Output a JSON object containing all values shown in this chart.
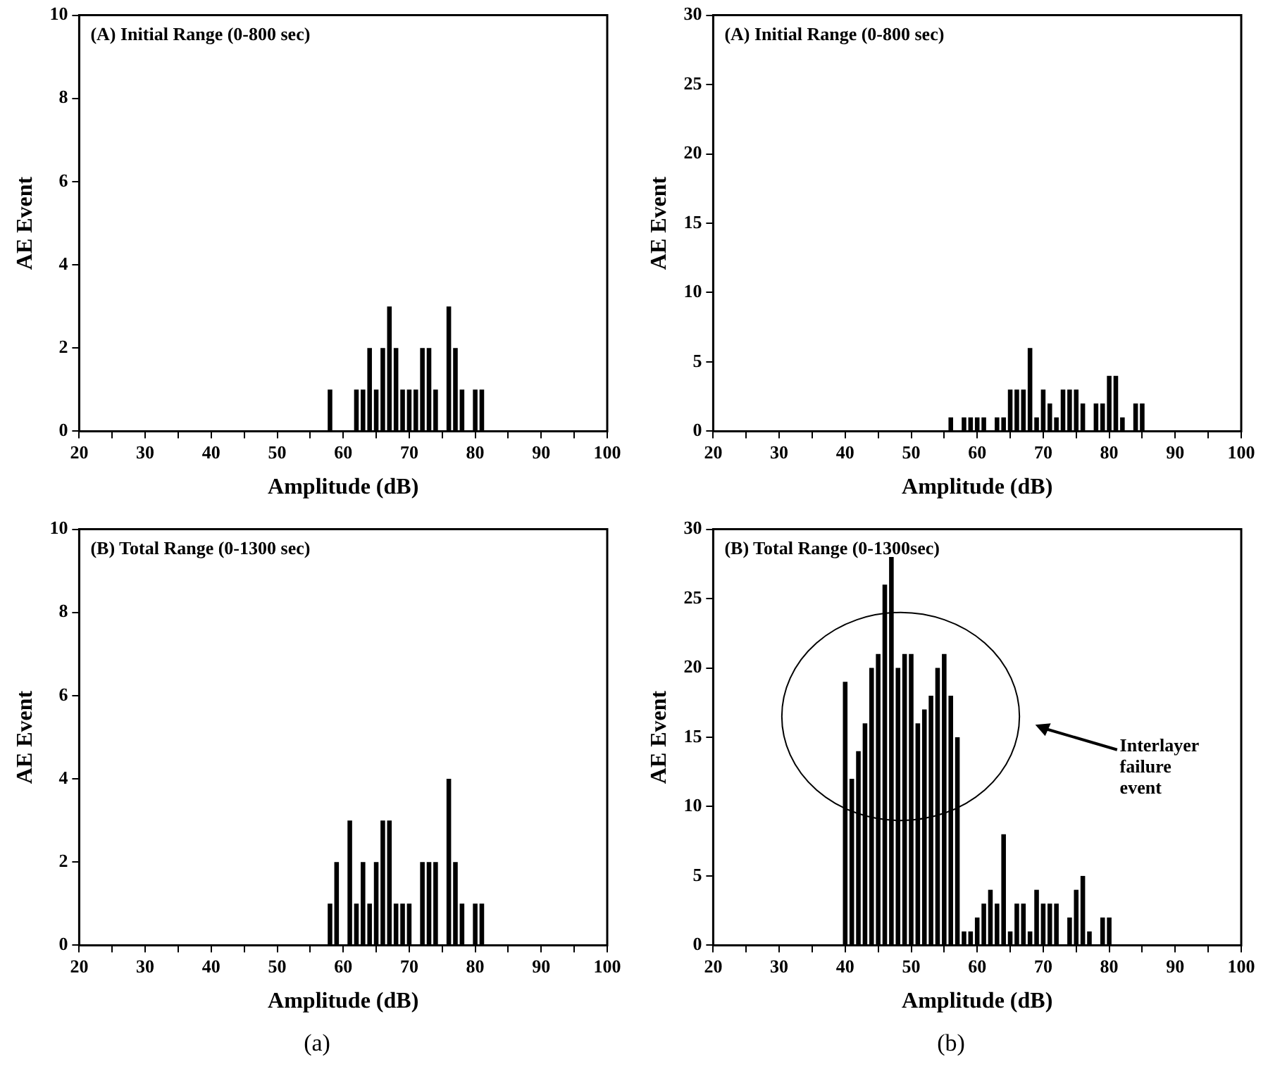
{
  "chart_data": [
    {
      "type": "bar",
      "title": "(A) Initial Range (0-800 sec)",
      "xlabel": "Amplitude (dB)",
      "ylabel": "AE Event",
      "legend": false,
      "grid": false,
      "x": [
        58,
        62,
        63,
        64,
        65,
        66,
        67,
        68,
        69,
        70,
        71,
        72,
        73,
        74,
        76,
        77,
        78,
        80,
        81
      ],
      "series": [
        {
          "color": "#000000",
          "values": [
            1,
            1,
            1,
            2,
            1,
            2,
            3,
            2,
            1,
            1,
            1,
            2,
            2,
            1,
            3,
            2,
            1,
            1,
            1
          ]
        }
      ],
      "xlim": [
        20,
        100
      ],
      "xticks": [
        20,
        {
          "value": 25,
          "label": null
        },
        30,
        {
          "value": 35,
          "label": null
        },
        40,
        {
          "value": 45,
          "label": null
        },
        50,
        {
          "value": 55,
          "label": null
        },
        60,
        {
          "value": 65,
          "label": null
        },
        70,
        {
          "value": 75,
          "label": null
        },
        80,
        {
          "value": 85,
          "label": null
        },
        90,
        {
          "value": 95,
          "label": null
        },
        100
      ],
      "ylim": [
        0,
        10
      ],
      "yticks": [
        0,
        2,
        4,
        6,
        8,
        10
      ]
    },
    {
      "type": "bar",
      "title": "(A) Initial Range (0-800 sec)",
      "xlabel": "Amplitude (dB)",
      "ylabel": "AE Event",
      "legend": false,
      "grid": false,
      "x": [
        56,
        58,
        59,
        60,
        61,
        63,
        64,
        65,
        66,
        67,
        68,
        69,
        70,
        71,
        72,
        73,
        74,
        75,
        76,
        78,
        79,
        80,
        81,
        82,
        84,
        85
      ],
      "series": [
        {
          "color": "#000000",
          "values": [
            1,
            1,
            1,
            1,
            1,
            1,
            1,
            3,
            3,
            3,
            6,
            1,
            3,
            2,
            1,
            3,
            3,
            3,
            2,
            2,
            2,
            4,
            4,
            1,
            2,
            2
          ]
        }
      ],
      "xlim": [
        20,
        100
      ],
      "xticks": [
        20,
        {
          "value": 25,
          "label": null
        },
        30,
        {
          "value": 35,
          "label": null
        },
        40,
        {
          "value": 45,
          "label": null
        },
        50,
        {
          "value": 55,
          "label": null
        },
        60,
        {
          "value": 65,
          "label": null
        },
        70,
        {
          "value": 75,
          "label": null
        },
        80,
        {
          "value": 85,
          "label": null
        },
        90,
        {
          "value": 95,
          "label": null
        },
        100
      ],
      "ylim": [
        0,
        30
      ],
      "yticks": [
        0,
        5,
        10,
        15,
        20,
        25,
        30
      ]
    },
    {
      "type": "bar",
      "title": "(B) Total Range (0-1300 sec)",
      "subtitle": "(a)",
      "xlabel": "Amplitude (dB)",
      "ylabel": "AE Event",
      "legend": false,
      "grid": false,
      "x": [
        58,
        59,
        61,
        62,
        63,
        64,
        65,
        66,
        67,
        68,
        69,
        70,
        72,
        73,
        74,
        76,
        77,
        78,
        80,
        81
      ],
      "series": [
        {
          "color": "#000000",
          "values": [
            1,
            2,
            3,
            1,
            2,
            1,
            2,
            3,
            3,
            1,
            1,
            1,
            2,
            2,
            2,
            4,
            2,
            1,
            1,
            1
          ]
        }
      ],
      "xlim": [
        20,
        100
      ],
      "xticks": [
        20,
        {
          "value": 25,
          "label": null
        },
        30,
        {
          "value": 35,
          "label": null
        },
        40,
        {
          "value": 45,
          "label": null
        },
        50,
        {
          "value": 55,
          "label": null
        },
        60,
        {
          "value": 65,
          "label": null
        },
        70,
        {
          "value": 75,
          "label": null
        },
        80,
        {
          "value": 85,
          "label": null
        },
        90,
        {
          "value": 95,
          "label": null
        },
        100
      ],
      "ylim": [
        0,
        10
      ],
      "yticks": [
        0,
        2,
        4,
        6,
        8,
        10
      ]
    },
    {
      "type": "bar",
      "title": "(B) Total Range (0-1300sec)",
      "subtitle": "(b)",
      "xlabel": "Amplitude (dB)",
      "ylabel": "AE Event",
      "legend": false,
      "grid": false,
      "x": [
        40,
        41,
        42,
        43,
        44,
        45,
        46,
        47,
        48,
        49,
        50,
        51,
        52,
        53,
        54,
        55,
        56,
        57,
        58,
        59,
        60,
        61,
        62,
        63,
        64,
        65,
        66,
        67,
        68,
        69,
        70,
        71,
        72,
        74,
        75,
        76,
        77,
        79,
        80
      ],
      "series": [
        {
          "color": "#000000",
          "values": [
            19,
            12,
            14,
            16,
            20,
            21,
            26,
            28,
            20,
            21,
            21,
            16,
            17,
            18,
            20,
            21,
            18,
            15,
            1,
            1,
            2,
            3,
            4,
            3,
            8,
            1,
            3,
            3,
            1,
            4,
            3,
            3,
            3,
            2,
            4,
            5,
            1,
            2,
            2
          ]
        }
      ],
      "xlim": [
        20,
        100
      ],
      "xticks": [
        20,
        {
          "value": 25,
          "label": null
        },
        30,
        {
          "value": 35,
          "label": null
        },
        40,
        {
          "value": 45,
          "label": null
        },
        50,
        {
          "value": 55,
          "label": null
        },
        60,
        {
          "value": 65,
          "label": null
        },
        70,
        {
          "value": 75,
          "label": null
        },
        80,
        {
          "value": 85,
          "label": null
        },
        90,
        {
          "value": 95,
          "label": null
        },
        100
      ],
      "ylim": [
        0,
        30
      ],
      "yticks": [
        0,
        5,
        10,
        15,
        20,
        25,
        30
      ],
      "annotations": [
        "Interlayer failure event"
      ]
    }
  ]
}
